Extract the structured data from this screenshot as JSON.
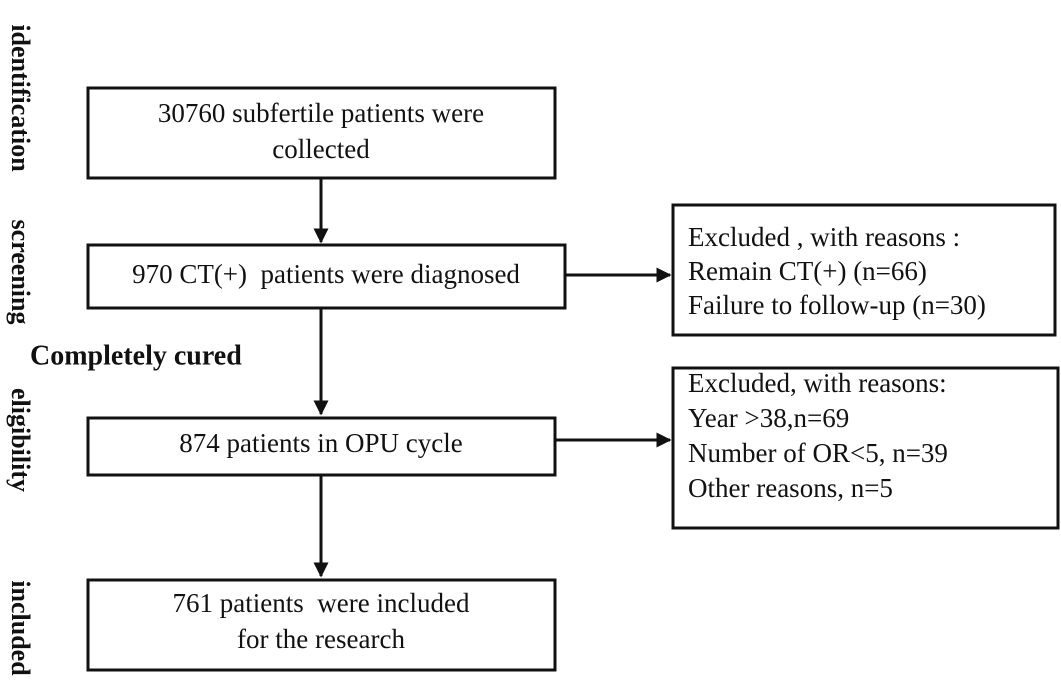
{
  "stages": [
    "identification",
    "screening",
    "eligibility",
    "included"
  ],
  "nodes": [
    {
      "lines": [
        "30760 subfertile patients were",
        "collected"
      ]
    },
    {
      "lines": [
        "970 CT(+)  patients were diagnosed"
      ]
    },
    {
      "lines": [
        "874 patients in OPU cycle"
      ]
    },
    {
      "lines": [
        "761 patients  were included",
        "for the research"
      ]
    }
  ],
  "exclusions": [
    {
      "lines": [
        "Excluded , with reasons :",
        "Remain CT(+) (n=66)",
        "Failure to follow-up (n=30)"
      ]
    },
    {
      "lines": [
        "Excluded, with reasons:",
        "Year >38,n=69",
        "Number of OR<5, n=39",
        "Other reasons, n=5"
      ]
    }
  ],
  "edge_label": "Completely cured"
}
